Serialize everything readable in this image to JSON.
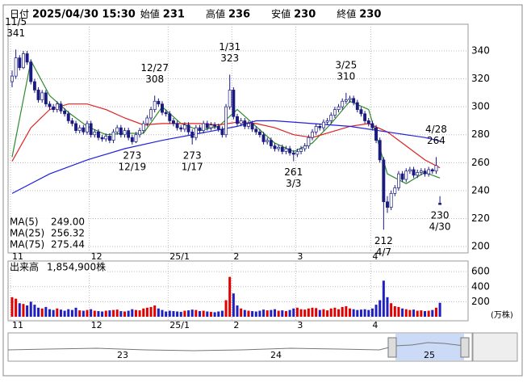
{
  "chart_data": {
    "type": "candlestick",
    "header": [
      {
        "label": "日付",
        "value": "2025/04/30 15:30",
        "color": "#000000"
      },
      {
        "label": "始値",
        "value": 231,
        "color": "#000000"
      },
      {
        "label": "高値",
        "value": 236,
        "color": "#e60000"
      },
      {
        "label": "安値",
        "value": 230,
        "color": "#008000"
      },
      {
        "label": "終値",
        "value": 230,
        "color": "#000000"
      }
    ],
    "categories": [
      "11",
      null,
      null,
      null,
      null,
      null,
      null,
      null,
      null,
      null,
      null,
      null,
      null,
      null,
      null,
      null,
      null,
      null,
      null,
      null,
      null,
      "12",
      null,
      null,
      null,
      null,
      null,
      null,
      null,
      null,
      null,
      null,
      null,
      null,
      null,
      null,
      null,
      null,
      null,
      null,
      null,
      null,
      "25/1",
      null,
      null,
      null,
      null,
      null,
      null,
      null,
      null,
      null,
      null,
      null,
      null,
      null,
      null,
      null,
      null,
      "2",
      null,
      null,
      null,
      null,
      null,
      null,
      null,
      null,
      null,
      null,
      null,
      null,
      null,
      null,
      null,
      null,
      "3",
      null,
      null,
      null,
      null,
      null,
      null,
      null,
      null,
      null,
      null,
      null,
      null,
      null,
      null,
      null,
      null,
      null,
      null,
      null,
      "4",
      null,
      null,
      null,
      null,
      null,
      null,
      null,
      null,
      null,
      null,
      null,
      null,
      null,
      null,
      null,
      null,
      null,
      null
    ],
    "candles": [
      [
        318,
        326,
        314,
        322
      ],
      [
        322,
        341,
        320,
        335
      ],
      [
        335,
        337,
        326,
        328
      ],
      [
        328,
        340,
        327,
        338
      ],
      [
        338,
        340,
        330,
        332
      ],
      [
        332,
        334,
        316,
        318
      ],
      [
        318,
        320,
        310,
        312
      ],
      [
        312,
        314,
        303,
        305
      ],
      [
        305,
        312,
        303,
        310
      ],
      [
        310,
        312,
        300,
        302
      ],
      [
        302,
        304,
        298,
        300
      ],
      [
        300,
        302,
        296,
        298
      ],
      [
        298,
        304,
        296,
        302
      ],
      [
        302,
        304,
        295,
        297
      ],
      [
        297,
        299,
        293,
        295
      ],
      [
        295,
        297,
        288,
        290
      ],
      [
        290,
        292,
        286,
        288
      ],
      [
        288,
        290,
        281,
        283
      ],
      [
        283,
        287,
        281,
        285
      ],
      [
        285,
        287,
        280,
        282
      ],
      [
        282,
        290,
        280,
        288
      ],
      [
        288,
        290,
        278,
        280
      ],
      [
        280,
        284,
        278,
        282
      ],
      [
        282,
        284,
        276,
        278
      ],
      [
        278,
        280,
        275,
        277
      ],
      [
        277,
        281,
        275,
        279
      ],
      [
        279,
        281,
        274,
        276
      ],
      [
        276,
        284,
        274,
        282
      ],
      [
        282,
        287,
        280,
        285
      ],
      [
        285,
        287,
        278,
        280
      ],
      [
        280,
        285,
        278,
        283
      ],
      [
        283,
        285,
        276,
        278
      ],
      [
        278,
        280,
        273,
        275
      ],
      [
        275,
        282,
        274,
        280
      ],
      [
        280,
        285,
        278,
        283
      ],
      [
        283,
        290,
        281,
        288
      ],
      [
        288,
        294,
        286,
        292
      ],
      [
        292,
        300,
        290,
        298
      ],
      [
        298,
        308,
        296,
        304
      ],
      [
        304,
        306,
        300,
        302
      ],
      [
        302,
        304,
        294,
        296
      ],
      [
        296,
        298,
        293,
        295
      ],
      [
        295,
        297,
        288,
        290
      ],
      [
        290,
        292,
        286,
        288
      ],
      [
        288,
        290,
        283,
        285
      ],
      [
        285,
        287,
        282,
        284
      ],
      [
        284,
        289,
        282,
        287
      ],
      [
        287,
        289,
        280,
        282
      ],
      [
        282,
        284,
        273,
        278
      ],
      [
        278,
        287,
        276,
        285
      ],
      [
        285,
        287,
        281,
        283
      ],
      [
        283,
        290,
        281,
        288
      ],
      [
        288,
        290,
        283,
        285
      ],
      [
        285,
        289,
        283,
        287
      ],
      [
        287,
        289,
        284,
        286
      ],
      [
        286,
        288,
        282,
        284
      ],
      [
        284,
        286,
        278,
        280
      ],
      [
        280,
        302,
        278,
        300
      ],
      [
        300,
        323,
        298,
        312
      ],
      [
        312,
        314,
        291,
        293
      ],
      [
        293,
        295,
        286,
        288
      ],
      [
        288,
        292,
        286,
        290
      ],
      [
        290,
        292,
        284,
        286
      ],
      [
        286,
        290,
        284,
        288
      ],
      [
        288,
        290,
        282,
        284
      ],
      [
        284,
        286,
        280,
        282
      ],
      [
        282,
        284,
        278,
        280
      ],
      [
        280,
        282,
        273,
        275
      ],
      [
        275,
        278,
        273,
        276
      ],
      [
        276,
        278,
        270,
        272
      ],
      [
        272,
        274,
        268,
        270
      ],
      [
        270,
        273,
        268,
        271
      ],
      [
        271,
        273,
        266,
        268
      ],
      [
        268,
        272,
        266,
        270
      ],
      [
        270,
        272,
        265,
        267
      ],
      [
        267,
        269,
        261,
        266
      ],
      [
        266,
        270,
        264,
        268
      ],
      [
        268,
        272,
        266,
        270
      ],
      [
        270,
        274,
        268,
        272
      ],
      [
        272,
        280,
        270,
        278
      ],
      [
        278,
        284,
        276,
        282
      ],
      [
        282,
        288,
        280,
        286
      ],
      [
        286,
        288,
        283,
        285
      ],
      [
        285,
        291,
        283,
        289
      ],
      [
        289,
        292,
        287,
        290
      ],
      [
        290,
        296,
        288,
        294
      ],
      [
        294,
        300,
        292,
        298
      ],
      [
        298,
        302,
        296,
        300
      ],
      [
        300,
        306,
        298,
        304
      ],
      [
        304,
        310,
        302,
        305
      ],
      [
        305,
        308,
        303,
        306
      ],
      [
        306,
        308,
        301,
        303
      ],
      [
        303,
        305,
        296,
        298
      ],
      [
        298,
        300,
        293,
        295
      ],
      [
        295,
        297,
        288,
        290
      ],
      [
        290,
        292,
        286,
        288
      ],
      [
        288,
        290,
        283,
        285
      ],
      [
        285,
        287,
        274,
        276
      ],
      [
        276,
        278,
        260,
        262
      ],
      [
        262,
        264,
        212,
        232
      ],
      [
        232,
        236,
        224,
        228
      ],
      [
        228,
        240,
        226,
        238
      ],
      [
        238,
        244,
        236,
        242
      ],
      [
        242,
        254,
        240,
        252
      ],
      [
        252,
        254,
        246,
        248
      ],
      [
        248,
        256,
        246,
        254
      ],
      [
        254,
        257,
        252,
        255
      ],
      [
        255,
        257,
        249,
        251
      ],
      [
        251,
        255,
        249,
        253
      ],
      [
        253,
        256,
        251,
        254
      ],
      [
        254,
        256,
        250,
        252
      ],
      [
        252,
        257,
        250,
        255
      ],
      [
        255,
        256,
        252,
        254
      ],
      [
        254,
        264,
        252,
        258
      ],
      [
        231,
        236,
        230,
        230
      ]
    ],
    "up_color": "#ffffff",
    "down_color": "#1a1a80",
    "candle_edge": "#1a1a80",
    "ylim": [
      195.4,
      359.1
    ],
    "yticks": [
      200,
      220,
      240,
      260,
      280,
      300,
      320,
      340
    ],
    "grid": true,
    "ma": [
      {
        "name": "MA(5)",
        "color": "#2e8b2e",
        "legend_value": {
          "value": 249,
          "label": "249.00"
        },
        "x": [
          0,
          5,
          10,
          15,
          20,
          25,
          30,
          35,
          40,
          45,
          50,
          55,
          60,
          65,
          70,
          75,
          80,
          85,
          90,
          95,
          100,
          105,
          110,
          114
        ],
        "values": [
          264,
          333,
          308,
          296,
          286,
          280,
          281,
          281,
          300,
          288,
          283,
          286,
          298,
          286,
          274,
          268,
          274,
          288,
          304,
          298,
          252,
          245,
          253,
          249
        ]
      },
      {
        "name": "MA(25)",
        "color": "#e02020",
        "legend_value": {
          "value": 256.32,
          "label": "256.32"
        },
        "x": [
          0,
          5,
          10,
          15,
          20,
          25,
          30,
          35,
          40,
          45,
          50,
          55,
          60,
          65,
          70,
          75,
          80,
          85,
          90,
          95,
          100,
          105,
          110,
          114
        ],
        "values": [
          261,
          285,
          298,
          302,
          302,
          298,
          292,
          287,
          288,
          288,
          288,
          287,
          289,
          288,
          285,
          280,
          278,
          282,
          286,
          288,
          282,
          272,
          262,
          256.32
        ]
      },
      {
        "name": "MA(75)",
        "color": "#2020e0",
        "legend_value": {
          "value": 275.44,
          "label": "275.44"
        },
        "x": [
          0,
          10,
          20,
          30,
          40,
          50,
          60,
          65,
          70,
          80,
          90,
          100,
          110,
          114
        ],
        "values": [
          238,
          252,
          262,
          270,
          276,
          281,
          286,
          290,
          290,
          288,
          286,
          282,
          278,
          275.44
        ]
      }
    ],
    "annotations": [
      {
        "date": "11/5",
        "value": 341,
        "position": "above"
      },
      {
        "date": "12/19",
        "value": 273,
        "position": "below"
      },
      {
        "date": "12/27",
        "value": 308,
        "position": "above"
      },
      {
        "date": "1/17",
        "value": 273,
        "position": "below"
      },
      {
        "date": "1/31",
        "value": 323,
        "position": "above"
      },
      {
        "date": "3/3",
        "value": 261,
        "position": "below"
      },
      {
        "date": "3/25",
        "value": 310,
        "position": "above"
      },
      {
        "date": "4/7",
        "value": 212,
        "position": "below"
      },
      {
        "date": "4/28",
        "value": 264,
        "position": "above"
      },
      {
        "date": "4/30",
        "value": 230,
        "position": "below"
      }
    ],
    "volume": {
      "label": "出来高",
      "latest": {
        "value": 1854900,
        "label": "1,854,900株"
      },
      "unit": "(万株)",
      "up_color": "#e00000",
      "down_color": "#2020c0",
      "ylim": [
        0,
        720
      ],
      "yticks": [
        200,
        400,
        600
      ],
      "values": [
        260,
        240,
        180,
        170,
        150,
        200,
        160,
        120,
        110,
        130,
        100,
        90,
        110,
        95,
        80,
        100,
        90,
        120,
        85,
        80,
        90,
        100,
        80,
        75,
        70,
        80,
        85,
        90,
        95,
        75,
        70,
        80,
        100,
        90,
        85,
        110,
        120,
        130,
        150,
        110,
        90,
        70,
        80,
        75,
        70,
        65,
        80,
        85,
        95,
        90,
        75,
        80,
        70,
        65,
        60,
        70,
        80,
        220,
        530,
        310,
        150,
        110,
        90,
        80,
        75,
        70,
        80,
        95,
        85,
        90,
        100,
        80,
        85,
        75,
        90,
        110,
        120,
        100,
        95,
        110,
        120,
        115,
        90,
        100,
        85,
        110,
        120,
        100,
        130,
        140,
        110,
        100,
        90,
        95,
        100,
        90,
        110,
        160,
        220,
        480,
        260,
        180,
        140,
        130,
        110,
        100,
        90,
        95,
        80,
        85,
        75,
        80,
        90,
        120,
        185.49
      ]
    },
    "navigator_labels": [
      "23",
      "24",
      "25"
    ]
  }
}
